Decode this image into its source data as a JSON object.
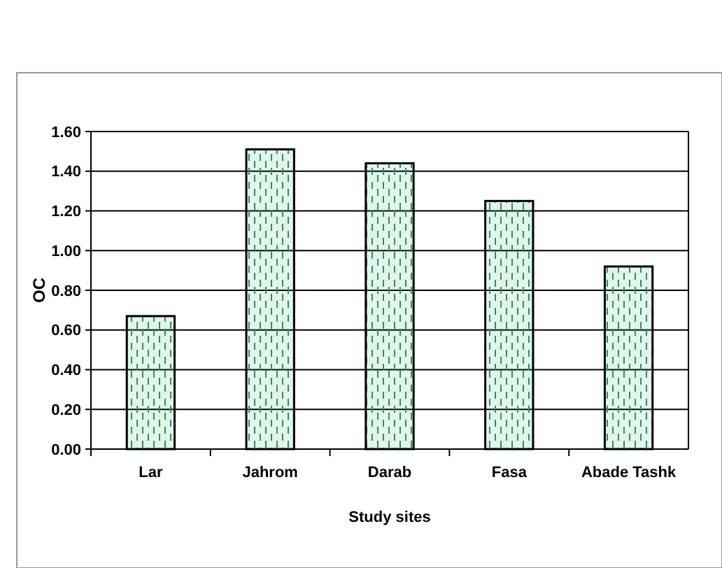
{
  "chart_data": {
    "type": "bar",
    "xlabel": "Study sites",
    "ylabel": "OC",
    "categories": [
      "Lar",
      "Jahrom",
      "Darab",
      "Fasa",
      "Abade Tashk"
    ],
    "values": [
      0.67,
      1.51,
      1.44,
      1.25,
      0.92
    ],
    "color": "#1e9a5a",
    "ylim": [
      0,
      1.6
    ],
    "yticks": [
      {
        "value": 0,
        "label": "0.00"
      },
      {
        "value": 0.2,
        "label": "0.20"
      },
      {
        "value": 0.4,
        "label": "0.40"
      },
      {
        "value": 0.6,
        "label": "0.60"
      },
      {
        "value": 0.8,
        "label": "0.80"
      },
      {
        "value": 1,
        "label": "1.00"
      },
      {
        "value": 1.2,
        "label": "1.20"
      },
      {
        "value": 1.4,
        "label": "1.40"
      },
      {
        "value": 1.6,
        "label": "1.60"
      }
    ],
    "grid": "y"
  }
}
